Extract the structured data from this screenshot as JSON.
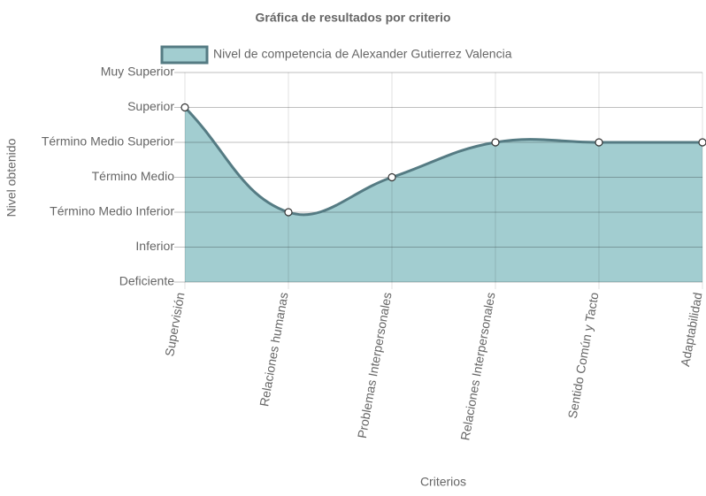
{
  "chart_data": {
    "type": "line",
    "title": "Gráfica de resultados por criterio",
    "x_label": "Criterios",
    "y_label": "Nivel obtenido",
    "categories": [
      "Supervisión",
      "Relaciones humanas",
      "Problemas Interpersonales",
      "Relaciones Interpersonales",
      "Sentido Común y Tacto",
      "Adaptabilidad"
    ],
    "series": [
      {
        "name": "Nivel de competencia de Alexander Gutierrez Valencia",
        "color": "#557b83",
        "fill": "#a2cdd0",
        "values": [
          5,
          2,
          3,
          4,
          4,
          4
        ]
      }
    ],
    "ylim": [
      0,
      6
    ],
    "yticks": [
      {
        "value": 0,
        "label": "Deficiente"
      },
      {
        "value": 1,
        "label": "Inferior"
      },
      {
        "value": 2,
        "label": "Término Medio Inferior"
      },
      {
        "value": 3,
        "label": "Término Medio"
      },
      {
        "value": 4,
        "label": "Término Medio Superior"
      },
      {
        "value": 5,
        "label": "Superior"
      },
      {
        "value": 6,
        "label": "Muy Superior"
      }
    ],
    "grid": true,
    "legend": "top"
  }
}
